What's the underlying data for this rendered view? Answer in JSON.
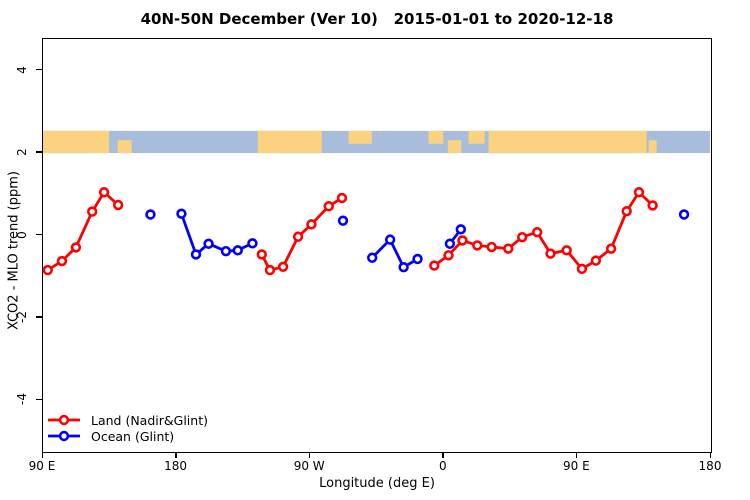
{
  "title": "40N-50N December (Ver 10)   2015-01-01 to 2020-12-18",
  "axes": {
    "x_label": "Longitude (deg E)",
    "y_label": "XCO2 - MLO trend (ppm)",
    "x_tick_labels": [
      "90 E",
      "180",
      "90 W",
      "0",
      "90 E",
      "180"
    ],
    "y_tick_labels": [
      "4",
      "2",
      "0",
      "-2",
      "-4"
    ],
    "y_tick_values": [
      4,
      2,
      0,
      -2,
      -4
    ]
  },
  "legend": {
    "entries": [
      {
        "label": "Land (Nadir&Glint)",
        "color": "#ff0000"
      },
      {
        "label": "Ocean (Glint)",
        "color": "#0000ff"
      }
    ]
  },
  "chart_data": {
    "type": "line",
    "title": "40N-50N December (Ver 10)   2015-01-01 to 2020-12-18",
    "xlabel": "Longitude (deg E)",
    "ylabel": "XCO2 - MLO trend (ppm)",
    "x_axis_note": "axis origin at 90E, runs eastward 450 degrees (90E -> 180 -> 90W -> 0 -> 90E -> 180)",
    "x_range_deg": [
      0,
      450
    ],
    "ylim": [
      -5,
      5
    ],
    "grid": false,
    "legend_position": "bottom-left inside plot",
    "marker": "open-circle",
    "series": [
      {
        "name": "Land (Nadir&Glint)",
        "color": "#ff0000",
        "clusters": [
          [
            [
              3.2,
              -0.84
            ],
            [
              12.8,
              -0.62
            ],
            [
              22.2,
              -0.29
            ],
            [
              33.2,
              0.58
            ],
            [
              41.2,
              1.05
            ],
            [
              50.7,
              0.74
            ]
          ],
          [
            [
              147.6,
              -0.46
            ],
            [
              153.1,
              -0.84
            ],
            [
              162.0,
              -0.76
            ],
            [
              172.1,
              -0.03
            ],
            [
              181.1,
              0.27
            ],
            [
              192.8,
              0.71
            ],
            [
              201.7,
              0.91
            ]
          ],
          [
            [
              264.0,
              -0.73
            ],
            [
              273.6,
              -0.48
            ],
            [
              283.0,
              -0.12
            ],
            [
              293.0,
              -0.24
            ],
            [
              302.7,
              -0.28
            ],
            [
              313.9,
              -0.32
            ],
            [
              323.3,
              -0.04
            ],
            [
              333.4,
              0.08
            ],
            [
              342.4,
              -0.44
            ],
            [
              353.3,
              -0.36
            ],
            [
              363.6,
              -0.81
            ],
            [
              373.0,
              -0.61
            ],
            [
              383.3,
              -0.32
            ],
            [
              393.8,
              0.59
            ],
            [
              402.1,
              1.05
            ],
            [
              411.3,
              0.73
            ]
          ]
        ]
      },
      {
        "name": "Ocean (Glint)",
        "color": "#0000ff",
        "clusters": [
          [
            [
              72.5,
              0.51
            ]
          ],
          [
            [
              93.4,
              0.53
            ],
            [
              103.2,
              -0.46
            ],
            [
              111.7,
              -0.2
            ],
            [
              123.4,
              -0.38
            ],
            [
              131.4,
              -0.36
            ],
            [
              141.3,
              -0.19
            ]
          ],
          [
            [
              202.4,
              0.36
            ]
          ],
          [
            [
              222.1,
              -0.54
            ],
            [
              234.2,
              -0.1
            ],
            [
              243.3,
              -0.77
            ],
            [
              252.7,
              -0.57
            ]
          ],
          [
            [
              274.5,
              -0.2
            ],
            [
              281.9,
              0.15
            ]
          ],
          [
            [
              432.5,
              0.51
            ]
          ]
        ]
      }
    ],
    "map_band": {
      "description": "world-map strip of the 40N-50N latitude band drawn across the plot",
      "y_value_range": [
        2.0,
        2.54
      ],
      "land_color": "#fbd37f",
      "ocean_color": "#a8bddb",
      "land_segments": [
        {
          "f0": 0.0,
          "f1": 0.099,
          "v": "full"
        },
        {
          "f0": 0.112,
          "f1": 0.133,
          "v": "bottom"
        },
        {
          "f0": 0.322,
          "f1": 0.418,
          "v": "full"
        },
        {
          "f0": 0.458,
          "f1": 0.493,
          "v": "top"
        },
        {
          "f0": 0.578,
          "f1": 0.6,
          "v": "top"
        },
        {
          "f0": 0.607,
          "f1": 0.627,
          "v": "bottom"
        },
        {
          "f0": 0.638,
          "f1": 0.662,
          "v": "top"
        },
        {
          "f0": 0.668,
          "f1": 0.905,
          "v": "full"
        },
        {
          "f0": 0.908,
          "f1": 0.92,
          "v": "bottom"
        }
      ]
    }
  }
}
